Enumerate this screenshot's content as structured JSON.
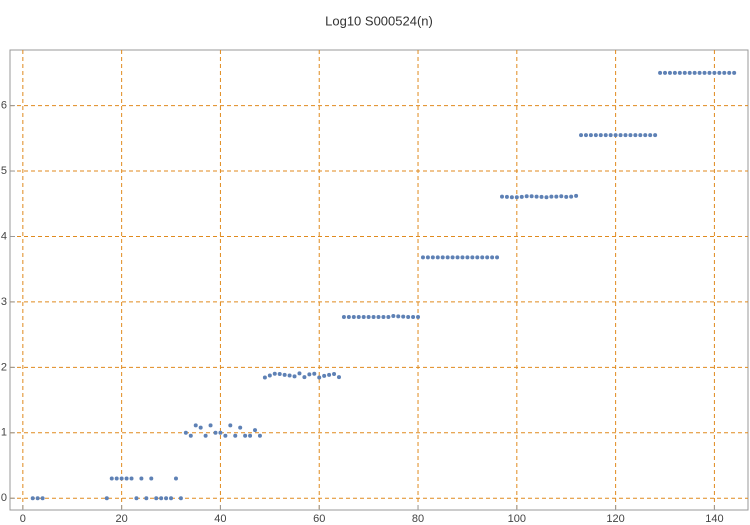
{
  "chart_data": {
    "type": "scatter",
    "title": "Log10 S000524(n)",
    "x": [
      2,
      3,
      4,
      17,
      18,
      19,
      20,
      21,
      22,
      23,
      24,
      25,
      26,
      27,
      28,
      29,
      30,
      31,
      32,
      33,
      34,
      35,
      36,
      37,
      38,
      39,
      40,
      41,
      42,
      43,
      44,
      45,
      46,
      47,
      48,
      49,
      50,
      51,
      52,
      53,
      54,
      55,
      56,
      57,
      58,
      59,
      60,
      61,
      62,
      63,
      64,
      65,
      66,
      67,
      68,
      69,
      70,
      71,
      72,
      73,
      74,
      75,
      76,
      77,
      78,
      79,
      80,
      81,
      82,
      83,
      84,
      85,
      86,
      87,
      88,
      89,
      90,
      91,
      92,
      93,
      94,
      95,
      96,
      97,
      98,
      99,
      100,
      101,
      102,
      103,
      104,
      105,
      106,
      107,
      108,
      109,
      110,
      111,
      112,
      113,
      114,
      115,
      116,
      117,
      118,
      119,
      120,
      121,
      122,
      123,
      124,
      125,
      126,
      127,
      128,
      129,
      130,
      131,
      132,
      133,
      134,
      135,
      136,
      137,
      138,
      139,
      140,
      141,
      142,
      143,
      144
    ],
    "values": [
      0,
      0,
      0,
      0,
      0.301,
      0.301,
      0.301,
      0.301,
      0.301,
      0,
      0.301,
      0,
      0.301,
      0,
      0,
      0,
      0,
      0.301,
      0,
      1,
      0.954,
      1.114,
      1.079,
      0.954,
      1.114,
      1,
      1,
      0.954,
      1.114,
      0.954,
      1.079,
      0.954,
      0.954,
      1.041,
      0.954,
      1.845,
      1.875,
      1.903,
      1.898,
      1.886,
      1.875,
      1.863,
      1.908,
      1.851,
      1.892,
      1.903,
      1.845,
      1.869,
      1.886,
      1.898,
      1.851,
      2.77,
      2.77,
      2.77,
      2.77,
      2.77,
      2.77,
      2.77,
      2.77,
      2.77,
      2.77,
      2.785,
      2.78,
      2.775,
      2.77,
      2.77,
      2.77,
      3.68,
      3.68,
      3.68,
      3.68,
      3.68,
      3.68,
      3.68,
      3.68,
      3.68,
      3.68,
      3.68,
      3.68,
      3.68,
      3.68,
      3.68,
      3.68,
      4.61,
      4.605,
      4.6,
      4.6,
      4.605,
      4.615,
      4.615,
      4.61,
      4.605,
      4.6,
      4.61,
      4.61,
      4.615,
      4.605,
      4.61,
      4.62,
      5.55,
      5.55,
      5.55,
      5.55,
      5.55,
      5.55,
      5.55,
      5.55,
      5.55,
      5.55,
      5.55,
      5.55,
      5.55,
      5.55,
      5.55,
      5.55,
      6.5,
      6.5,
      6.5,
      6.5,
      6.5,
      6.5,
      6.5,
      6.5,
      6.5,
      6.5,
      6.5,
      6.5,
      6.5,
      6.5,
      6.5,
      6.5
    ],
    "color": "#5e81b5",
    "xlim": [
      -2.6,
      146.8
    ],
    "ylim": [
      -0.18,
      6.85
    ],
    "xticks": [
      0,
      20,
      40,
      60,
      80,
      100,
      120,
      140
    ],
    "yticks": [
      0,
      1,
      2,
      3,
      4,
      5,
      6
    ],
    "grid": true,
    "grid_color": "#e08a1e"
  }
}
